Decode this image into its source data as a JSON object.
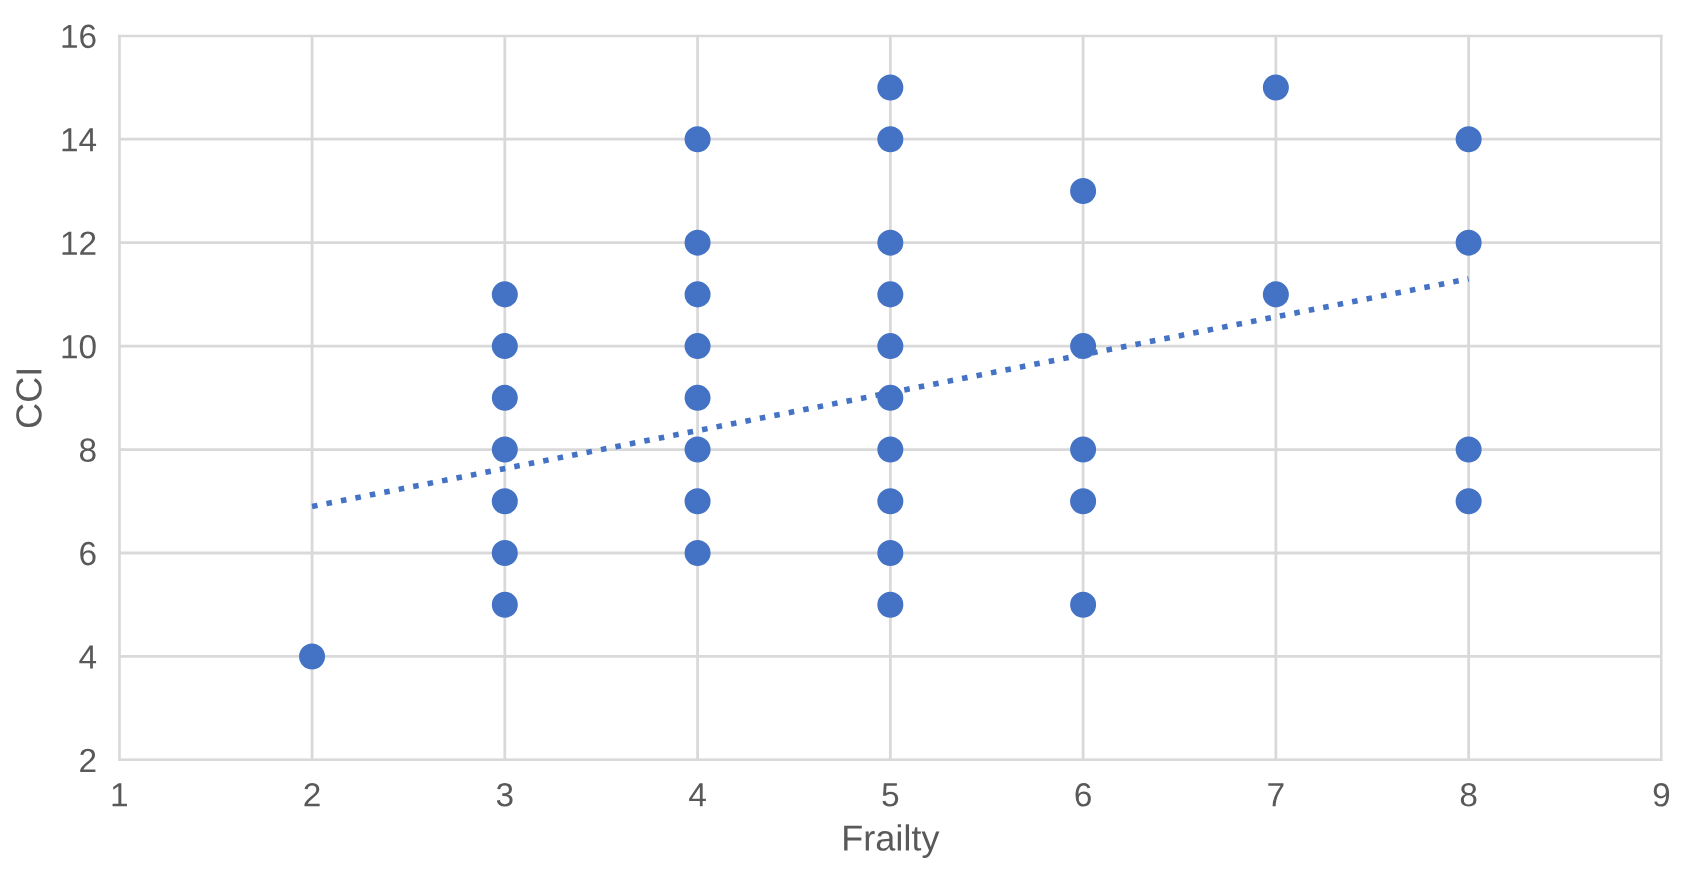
{
  "chart_data": {
    "type": "scatter",
    "xlabel": "Frailty",
    "ylabel": "CCI",
    "series": [
      {
        "color": "#4472c4",
        "marker": "circle",
        "x": [
          2,
          3,
          3,
          3,
          3,
          3,
          3,
          3,
          4,
          4,
          4,
          4,
          4,
          4,
          4,
          4,
          5,
          5,
          5,
          5,
          5,
          5,
          5,
          5,
          5,
          5,
          6,
          6,
          6,
          6,
          6,
          7,
          7,
          8,
          8,
          8,
          8
        ],
        "values": [
          4,
          5,
          6,
          7,
          8,
          9,
          10,
          11,
          6,
          7,
          8,
          9,
          10,
          11,
          12,
          14,
          5,
          6,
          7,
          8,
          9,
          10,
          11,
          12,
          14,
          15,
          5,
          7,
          8,
          10,
          13,
          11,
          15,
          7,
          8,
          12,
          14
        ]
      },
      {
        "type": "line",
        "color": "#4472c4",
        "line_style": "dotted",
        "marker": "none",
        "x": [
          2,
          8
        ],
        "values": [
          6.9,
          11.3
        ]
      }
    ],
    "xlim": [
      1,
      9
    ],
    "xticks": [
      1,
      2,
      3,
      4,
      5,
      6,
      7,
      8,
      9
    ],
    "ylim": [
      2,
      16
    ],
    "yticks": [
      2,
      4,
      6,
      8,
      10,
      12,
      14,
      16
    ],
    "grid": true,
    "legend": false
  }
}
